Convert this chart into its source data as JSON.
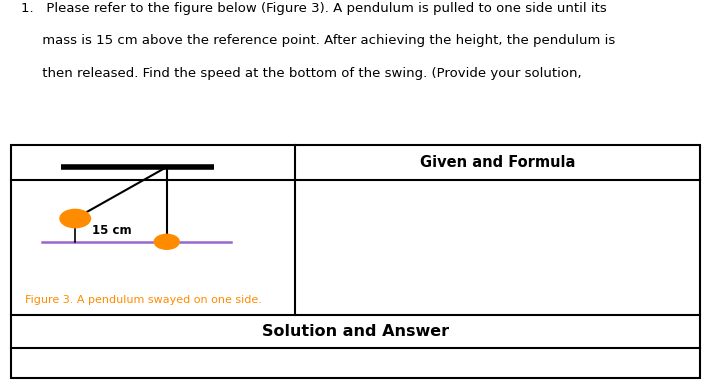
{
  "title_line1": "1.   Please refer to the figure below (Figure 3). A pendulum is pulled to one side until its",
  "title_line2": "     mass is 15 cm above the reference point. After achieving the height, the pendulum is",
  "title_line3": "     then released. Find the speed at the bottom of the swing. (Provide your solution,",
  "given_formula_label": "Given and Formula",
  "solution_answer_label": "Solution and Answer",
  "figure_caption": "Figure 3. A pendulum swayed on one side.",
  "label_15cm": "15 cm",
  "bg_color": "#ffffff",
  "table_border_color": "#000000",
  "orange_color": "#FF8C00",
  "ref_line_color": "#9966CC",
  "bar_color": "#000000",
  "string_color": "#000000",
  "vertical_line_color": "#000000",
  "caption_color": "#FF8C00",
  "title_fontsize": 9.5,
  "caption_fontsize": 8.0,
  "label_fontsize": 8.5,
  "given_fontsize": 10.5,
  "solution_fontsize": 11.5
}
